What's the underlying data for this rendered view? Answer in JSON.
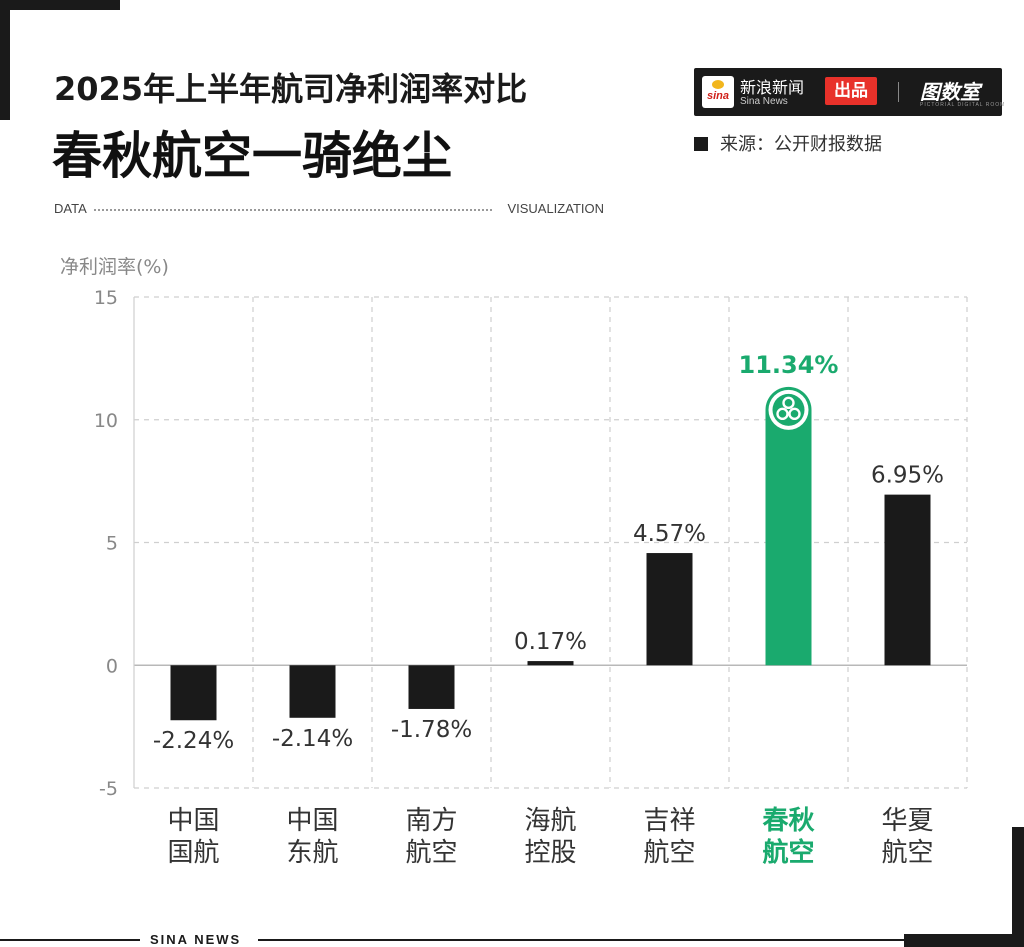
{
  "header": {
    "title_line1": "2025年上半年航司净利润率对比",
    "title_line2": "春秋航空一骑绝尘"
  },
  "banner": {
    "left": "DATA",
    "right": "VISUALIZATION"
  },
  "brand": {
    "sina_logo": "sina",
    "name_cn": "新浪新闻",
    "name_en": "Sina News",
    "badge": "出品",
    "room": "图数室",
    "room_en": "PICTORIAL DIGITAL ROOM"
  },
  "source": "来源：公开财报数据",
  "footer": "SINA NEWS",
  "colors": {
    "bar": "#1a1a1a",
    "highlight": "#1aaa6e",
    "grid": "#cfcfcf",
    "text": "#333333"
  },
  "chart_data": {
    "type": "bar",
    "ylabel": "净利润率(%)",
    "ylim": [
      -5,
      15
    ],
    "yticks": [
      "15",
      "10",
      "5",
      "0",
      "-5"
    ],
    "ytick_values": [
      15,
      10,
      5,
      0,
      -5
    ],
    "categories": [
      [
        "中国",
        "国航"
      ],
      [
        "中国",
        "东航"
      ],
      [
        "南方",
        "航空"
      ],
      [
        "海航",
        "控股"
      ],
      [
        "吉祥",
        "航空"
      ],
      [
        "春秋",
        "航空"
      ],
      [
        "华夏",
        "航空"
      ]
    ],
    "values": [
      -2.24,
      -2.14,
      -1.78,
      0.17,
      4.57,
      11.34,
      6.95
    ],
    "labels": [
      "-2.24%",
      "-2.14%",
      "-1.78%",
      "0.17%",
      "4.57%",
      "11.34%",
      "6.95%"
    ],
    "highlight_index": 5,
    "grid": true
  }
}
